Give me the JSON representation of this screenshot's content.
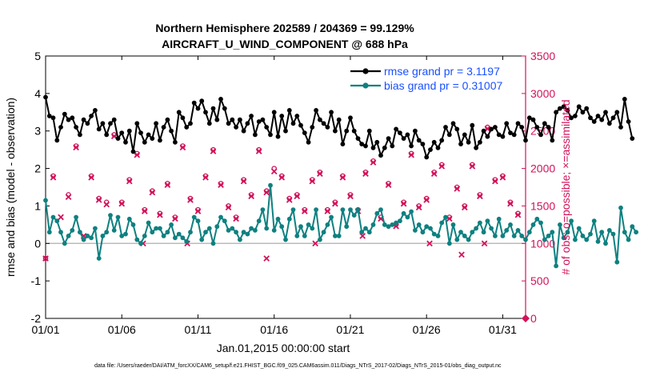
{
  "chart_data": {
    "type": "line",
    "title": "Northern Hemisphere 202589 / 204369 = 99.129%",
    "subtitle": "AIRCRAFT_U_WIND_COMPONENT @ 688 hPa",
    "xlabel": "Jan.01,2015 00:00:00 start",
    "ylabel_left": "rmse and bias (model - observation)",
    "ylabel_right": "# of obs: o=possible; ×=assimilated",
    "footer": "data file: /Users/raeder/DAI/ATM_forcXX/CAM6_setup/f.e21.FHIST_BGC.f09_025.CAM6assim.011/Diags_NTrS_2017-02/Diags_NTrS_2015-01/obs_diag_output.nc",
    "xlim": [
      0,
      31.5
    ],
    "ylim_left": [
      -2,
      5
    ],
    "ylim_right": [
      0,
      3500
    ],
    "x_tick_labels": [
      "01/01",
      "01/06",
      "01/11",
      "01/16",
      "01/21",
      "01/26",
      "01/31"
    ],
    "x_tick_values": [
      0,
      5,
      10,
      15,
      20,
      25,
      30
    ],
    "y_left_ticks": [
      -2,
      -1,
      0,
      1,
      2,
      3,
      4,
      5
    ],
    "y_right_ticks": [
      0,
      500,
      1000,
      1500,
      2000,
      2500,
      3000,
      3500
    ],
    "x_step_days": 0.25,
    "series": [
      {
        "name": "rmse",
        "legend": "rmse grand pr = 3.1197",
        "color": "#000000",
        "axis": "left",
        "values": [
          3.9,
          3.4,
          3.35,
          2.75,
          3.1,
          3.45,
          3.3,
          3.35,
          3.1,
          2.9,
          3.3,
          3.2,
          3.4,
          3.55,
          3.05,
          3.2,
          2.9,
          3.2,
          3.3,
          2.8,
          2.95,
          2.7,
          3.0,
          2.45,
          3.2,
          2.95,
          2.7,
          2.9,
          2.8,
          3.2,
          2.75,
          3.1,
          3.3,
          3.0,
          2.7,
          3.5,
          3.35,
          3.1,
          3.2,
          3.75,
          3.6,
          3.8,
          3.5,
          3.2,
          3.6,
          3.3,
          3.85,
          3.6,
          3.2,
          3.3,
          3.1,
          3.3,
          3.0,
          3.2,
          3.4,
          2.9,
          3.25,
          3.3,
          3.1,
          2.9,
          3.5,
          2.85,
          3.4,
          3.0,
          3.55,
          3.2,
          3.4,
          3.15,
          2.95,
          2.7,
          3.1,
          3.55,
          3.3,
          3.2,
          3.1,
          3.5,
          3.0,
          3.3,
          2.65,
          3.0,
          3.35,
          3.0,
          2.8,
          2.65,
          2.6,
          3.0,
          2.55,
          2.7,
          2.35,
          2.55,
          2.8,
          2.6,
          3.05,
          2.95,
          2.8,
          2.9,
          2.6,
          3.0,
          2.75,
          2.65,
          2.3,
          2.5,
          2.7,
          2.55,
          2.75,
          3.1,
          2.9,
          3.2,
          3.05,
          2.65,
          2.9,
          2.7,
          3.15,
          2.55,
          2.7,
          3.0,
          2.85,
          3.05,
          3.1,
          2.9,
          2.85,
          3.2,
          2.95,
          2.9,
          3.2,
          3.1,
          2.75,
          3.35,
          3.3,
          3.1,
          2.9,
          3.2,
          3.1,
          2.75,
          3.5,
          3.6,
          3.65,
          3.55,
          3.35,
          3.4,
          3.65,
          3.5,
          3.6,
          3.35,
          3.25,
          3.4,
          3.3,
          3.5,
          3.2,
          3.35,
          3.5,
          3.1,
          3.85,
          3.25,
          2.8
        ]
      },
      {
        "name": "bias",
        "legend": "bias grand pr = 0.31007",
        "color": "#0f8080",
        "axis": "left",
        "values": [
          1.15,
          0.3,
          0.7,
          0.6,
          0.3,
          0.0,
          0.2,
          0.35,
          0.7,
          0.3,
          0.1,
          0.2,
          0.15,
          0.4,
          -0.4,
          0.2,
          0.3,
          0.75,
          0.35,
          0.7,
          0.2,
          0.25,
          0.65,
          0.5,
          0.1,
          0.0,
          0.2,
          0.55,
          0.3,
          0.4,
          0.4,
          0.2,
          0.3,
          0.5,
          0.15,
          0.25,
          0.15,
          0.05,
          0.3,
          0.7,
          0.6,
          0.1,
          0.3,
          0.4,
          0.0,
          0.45,
          0.7,
          0.6,
          0.35,
          0.4,
          0.3,
          0.1,
          0.3,
          0.25,
          0.4,
          0.35,
          0.6,
          0.9,
          0.4,
          1.55,
          0.35,
          0.65,
          0.45,
          0.1,
          0.65,
          0.9,
          0.2,
          0.45,
          0.2,
          0.5,
          0.4,
          0.9,
          0.1,
          0.3,
          0.5,
          0.7,
          0.2,
          0.2,
          0.9,
          0.45,
          0.9,
          0.75,
          0.9,
          0.3,
          0.4,
          0.3,
          0.5,
          0.8,
          0.9,
          0.5,
          0.45,
          0.5,
          0.55,
          0.6,
          0.8,
          0.7,
          0.85,
          0.35,
          0.5,
          0.3,
          0.45,
          0.4,
          0.25,
          0.2,
          0.55,
          0.7,
          0.0,
          0.5,
          0.1,
          0.3,
          0.2,
          0.1,
          0.3,
          0.4,
          0.55,
          0.3,
          0.6,
          0.4,
          0.2,
          0.65,
          0.2,
          0.35,
          0.5,
          0.2,
          0.35,
          0.2,
          0.1,
          0.3,
          0.5,
          0.65,
          0.55,
          0.1,
          0.2,
          0.3,
          -0.6,
          0.5,
          0.15,
          0.3,
          0.6,
          0.1,
          0.4,
          0.2,
          0.1,
          0.25,
          0.6,
          0.05,
          0.3,
          0.0,
          0.35,
          0.25,
          -0.5,
          0.95,
          0.3,
          0.1,
          0.45,
          0.3
        ]
      }
    ],
    "obs_possible": {
      "legend": "o=possible",
      "color": "#d1135a",
      "axis": "right",
      "points": [
        [
          0,
          800
        ],
        [
          0.5,
          1900
        ],
        [
          1.5,
          1650
        ],
        [
          2,
          2300
        ],
        [
          3,
          1900
        ],
        [
          3.5,
          1600
        ],
        [
          4,
          1550
        ],
        [
          4.5,
          2450
        ],
        [
          5,
          1550
        ],
        [
          5.5,
          1850
        ],
        [
          6,
          2200
        ],
        [
          6.5,
          1450
        ],
        [
          7,
          1700
        ],
        [
          7.5,
          1400
        ],
        [
          8,
          1800
        ],
        [
          8.5,
          1350
        ],
        [
          9,
          2300
        ],
        [
          9.5,
          1600
        ],
        [
          10,
          1450
        ],
        [
          10.5,
          1900
        ],
        [
          11,
          2250
        ],
        [
          11.5,
          1800
        ],
        [
          12,
          1500
        ],
        [
          12.5,
          1350
        ],
        [
          13,
          1850
        ],
        [
          13.5,
          1650
        ],
        [
          14,
          2250
        ],
        [
          14.5,
          1700
        ],
        [
          15,
          2000
        ],
        [
          15.5,
          1900
        ],
        [
          16,
          1600
        ],
        [
          16.5,
          1650
        ],
        [
          17,
          1450
        ],
        [
          17.5,
          1850
        ],
        [
          18,
          1950
        ],
        [
          18.5,
          1450
        ],
        [
          19,
          1550
        ],
        [
          19.5,
          1900
        ],
        [
          20,
          1650
        ],
        [
          20.5,
          1450
        ],
        [
          21,
          1950
        ],
        [
          21.5,
          2100
        ],
        [
          22,
          1350
        ],
        [
          22.5,
          1800
        ],
        [
          23,
          1250
        ],
        [
          23.5,
          1550
        ],
        [
          24,
          2200
        ],
        [
          24.5,
          1500
        ],
        [
          25,
          1600
        ],
        [
          25.5,
          1950
        ],
        [
          26,
          2050
        ],
        [
          26.5,
          1350
        ],
        [
          27,
          1750
        ],
        [
          27.5,
          1500
        ],
        [
          28,
          2050
        ],
        [
          28.5,
          1650
        ],
        [
          29,
          2550
        ],
        [
          29.5,
          1850
        ],
        [
          30,
          1900
        ],
        [
          30.5,
          1550
        ],
        [
          31,
          1400
        ]
      ]
    },
    "obs_assimilated": {
      "legend": "×=assimilated",
      "color": "#d1135a",
      "axis": "right",
      "points": [
        [
          0,
          800
        ],
        [
          0.5,
          1880
        ],
        [
          1,
          1350
        ],
        [
          1.5,
          1620
        ],
        [
          2,
          2280
        ],
        [
          2.5,
          1100
        ],
        [
          3,
          1880
        ],
        [
          3.5,
          1580
        ],
        [
          4,
          1520
        ],
        [
          4.5,
          2430
        ],
        [
          5,
          1530
        ],
        [
          5.5,
          1830
        ],
        [
          6,
          2180
        ],
        [
          6.5,
          1430
        ],
        [
          7,
          1680
        ],
        [
          7.5,
          1380
        ],
        [
          8,
          1780
        ],
        [
          8.5,
          1330
        ],
        [
          9,
          2280
        ],
        [
          9.5,
          1580
        ],
        [
          10,
          1430
        ],
        [
          10.5,
          1880
        ],
        [
          11,
          2230
        ],
        [
          11.5,
          1780
        ],
        [
          12,
          1480
        ],
        [
          12.5,
          1330
        ],
        [
          13,
          1830
        ],
        [
          13.5,
          1630
        ],
        [
          14,
          2230
        ],
        [
          14.5,
          1680
        ],
        [
          15,
          1960
        ],
        [
          15.5,
          1880
        ],
        [
          16,
          1580
        ],
        [
          16.5,
          1630
        ],
        [
          17,
          1430
        ],
        [
          17.5,
          1830
        ],
        [
          18,
          1930
        ],
        [
          18.5,
          1430
        ],
        [
          19,
          1530
        ],
        [
          19.5,
          1880
        ],
        [
          20,
          1630
        ],
        [
          20.5,
          1430
        ],
        [
          21,
          1930
        ],
        [
          21.5,
          2080
        ],
        [
          22,
          1330
        ],
        [
          22.5,
          1780
        ],
        [
          23,
          1230
        ],
        [
          23.5,
          1530
        ],
        [
          24,
          2180
        ],
        [
          24.5,
          1480
        ],
        [
          25,
          1580
        ],
        [
          25.5,
          1930
        ],
        [
          26,
          2030
        ],
        [
          26.5,
          1330
        ],
        [
          27,
          1730
        ],
        [
          27.5,
          1480
        ],
        [
          28,
          2030
        ],
        [
          28.5,
          1630
        ],
        [
          29,
          2530
        ],
        [
          29.5,
          1830
        ],
        [
          30,
          1880
        ],
        [
          30.5,
          1530
        ],
        [
          31,
          1380
        ],
        [
          6.4,
          1000
        ],
        [
          9.3,
          1000
        ],
        [
          14.5,
          800
        ],
        [
          17.7,
          1000
        ],
        [
          20.8,
          1100
        ],
        [
          25.2,
          1000
        ],
        [
          27.3,
          850
        ],
        [
          28.8,
          1000
        ]
      ]
    }
  },
  "colors": {
    "axis": "#000000",
    "right_axis": "#d1135a",
    "rmse": "#000000",
    "bias": "#0f8080",
    "obs": "#d1135a",
    "legend_text": "#1a50ff",
    "zero_line": "#bbbbbb"
  }
}
